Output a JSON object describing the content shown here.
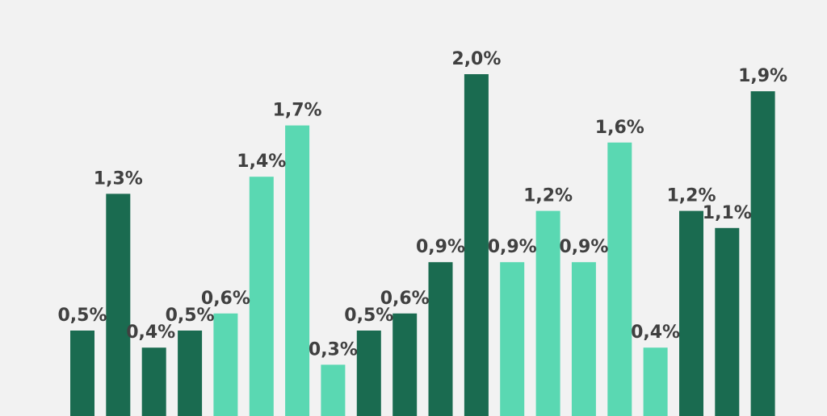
{
  "chart_data": {
    "type": "bar",
    "title": "",
    "xlabel": "",
    "ylabel": "",
    "ylim": [
      0,
      2.2
    ],
    "grid": false,
    "legend": "none",
    "values": [
      0.5,
      1.3,
      0.4,
      0.5,
      0.6,
      1.4,
      1.7,
      0.3,
      0.5,
      0.6,
      0.9,
      2.0,
      0.9,
      1.2,
      0.9,
      1.6,
      0.4,
      1.2,
      1.1,
      1.9
    ],
    "labels": [
      "0,5%",
      "1,3%",
      "0,4%",
      "0,5%",
      "0,6%",
      "1,4%",
      "1,7%",
      "0,3%",
      "0,5%",
      "0,6%",
      "0,9%",
      "2,0%",
      "0,9%",
      "1,2%",
      "0,9%",
      "1,6%",
      "0,4%",
      "1,2%",
      "1,1%",
      "1,9%"
    ],
    "bar_colors": [
      "#1a6b50",
      "#1a6b50",
      "#1a6b50",
      "#1a6b50",
      "#5ad8b2",
      "#5ad8b2",
      "#5ad8b2",
      "#5ad8b2",
      "#1a6b50",
      "#1a6b50",
      "#1a6b50",
      "#1a6b50",
      "#5ad8b2",
      "#5ad8b2",
      "#5ad8b2",
      "#5ad8b2",
      "#5ad8b2",
      "#1a6b50",
      "#1a6b50",
      "#1a6b50"
    ]
  }
}
